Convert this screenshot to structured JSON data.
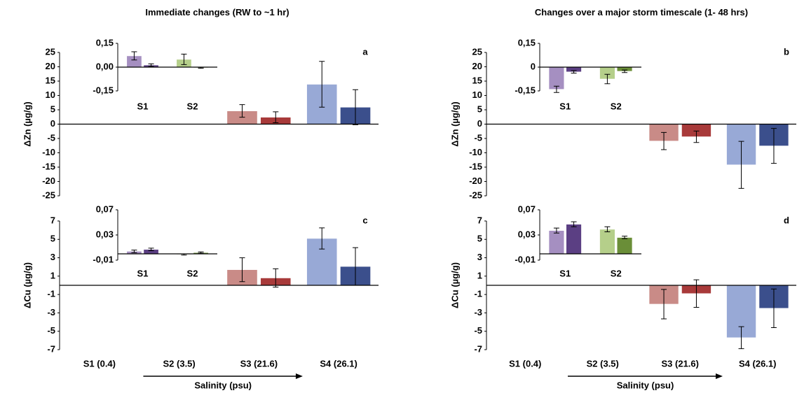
{
  "chart_data": [
    {
      "type": "bar",
      "title": "Immediate changes (RW to ~1 hr)",
      "label": "a",
      "ylabel": "ΔZn (µg/g)",
      "ylim": [
        -25,
        25
      ],
      "yticks": [
        25,
        20,
        15,
        10,
        5,
        0,
        -5,
        -10,
        -15,
        -20,
        -25
      ],
      "series": [
        {
          "colors": [
            "#a58fc1",
            "#b5cf8a",
            "#c98b87",
            "#98a9d6"
          ],
          "values": [
            0,
            0,
            4.6,
            13.9
          ],
          "errors": [
            0,
            0,
            2.2,
            8
          ]
        },
        {
          "colors": [
            "#5b3f83",
            "#6a8e38",
            "#a83a3a",
            "#3b4f8c"
          ],
          "values": [
            0,
            0,
            2.4,
            5.9
          ],
          "errors": [
            0,
            0,
            1.9,
            6.1
          ]
        }
      ],
      "inset": {
        "type": "bar",
        "categories": [
          "S1",
          "S2"
        ],
        "ylim": [
          -0.15,
          0.15
        ],
        "yticks": [
          {
            "value": 0.15,
            "label": "0,15"
          },
          {
            "value": 0,
            "label": "0,00"
          },
          {
            "value": -0.15,
            "label": "-0,15"
          }
        ],
        "series": [
          {
            "colors": [
              "#a58fc1",
              "#b5cf8a"
            ],
            "values": [
              0.071,
              0.049
            ],
            "errors": [
              0.026,
              0.033
            ]
          },
          {
            "colors": [
              "#5b3f83",
              "#6a8e38"
            ],
            "values": [
              0.013,
              -0.004
            ],
            "errors": [
              0.008,
              0.003
            ]
          }
        ]
      }
    },
    {
      "type": "bar",
      "title": "Changes over a major storm timescale (1- 48 hrs)",
      "label": "b",
      "ylabel": "ΔZn (µg/g)",
      "ylim": [
        -25,
        25
      ],
      "yticks": [
        25,
        20,
        15,
        10,
        5,
        0,
        -5,
        -10,
        -15,
        -20,
        -25
      ],
      "series": [
        {
          "colors": [
            "#a58fc1",
            "#b5cf8a",
            "#c98b87",
            "#98a9d6"
          ],
          "values": [
            0,
            0,
            -5.9,
            -14.2
          ],
          "errors": [
            0,
            0,
            3,
            8.2
          ]
        },
        {
          "colors": [
            "#5b3f83",
            "#6a8e38",
            "#a83a3a",
            "#3b4f8c"
          ],
          "values": [
            0,
            0,
            -4.4,
            -7.6
          ],
          "errors": [
            0,
            0,
            2,
            6.1
          ]
        }
      ],
      "inset": {
        "type": "bar",
        "categories": [
          "S1",
          "S2"
        ],
        "ylim": [
          -0.15,
          0.15
        ],
        "yticks": [
          {
            "value": 0.15,
            "label": "0,15"
          },
          {
            "value": 0,
            "label": "0"
          },
          {
            "value": -0.15,
            "label": "-0,15"
          }
        ],
        "series": [
          {
            "colors": [
              "#a58fc1",
              "#b5cf8a"
            ],
            "values": [
              -0.14,
              -0.075
            ],
            "errors": [
              0.02,
              0.03
            ]
          },
          {
            "colors": [
              "#5b3f83",
              "#6a8e38"
            ],
            "values": [
              -0.03,
              -0.026
            ],
            "errors": [
              0.008,
              0.008
            ]
          }
        ]
      }
    },
    {
      "type": "bar",
      "label": "c",
      "ylabel": "ΔCu (µg/g)",
      "xlabel": "Salinity (psu)",
      "categories": [
        "S1 (0.4)",
        "S2 (3.5)",
        "S3 (21.6)",
        "S4 (26.1)"
      ],
      "ylim": [
        -7,
        7
      ],
      "yticks": [
        7,
        5,
        3,
        1,
        -1,
        -3,
        -5,
        -7
      ],
      "series": [
        {
          "colors": [
            "#a58fc1",
            "#b5cf8a",
            "#c98b87",
            "#98a9d6"
          ],
          "values": [
            0,
            0,
            1.7,
            5.1
          ],
          "errors": [
            0,
            0,
            1.3,
            1.15
          ]
        },
        {
          "colors": [
            "#5b3f83",
            "#6a8e38",
            "#a83a3a",
            "#3b4f8c"
          ],
          "values": [
            0,
            0,
            0.8,
            2.05
          ],
          "errors": [
            0,
            0,
            1,
            2.05
          ]
        }
      ],
      "inset": {
        "type": "bar",
        "categories": [
          "S1",
          "S2"
        ],
        "ylim": [
          -0.01,
          0.07
        ],
        "yticks": [
          {
            "value": 0.07,
            "label": "0,07"
          },
          {
            "value": 0.03,
            "label": "0,03"
          },
          {
            "value": -0.01,
            "label": "-0,01"
          }
        ],
        "series": [
          {
            "colors": [
              "#a58fc1",
              "#b5cf8a"
            ],
            "values": [
              0.004,
              -0.001
            ],
            "errors": [
              0.002,
              0.001
            ]
          },
          {
            "colors": [
              "#5b3f83",
              "#6a8e38"
            ],
            "values": [
              0.007,
              0.002
            ],
            "errors": [
              0.002,
              0.001
            ]
          }
        ]
      }
    },
    {
      "type": "bar",
      "label": "d",
      "ylabel": "ΔCu (µg/g)",
      "xlabel": "Salinity (psu)",
      "categories": [
        "S1 (0.4)",
        "S2 (3.5)",
        "S3 (21.6)",
        "S4 (26.1)"
      ],
      "ylim": [
        -7,
        7
      ],
      "yticks": [
        7,
        5,
        3,
        1,
        -1,
        -3,
        -5,
        -7
      ],
      "series": [
        {
          "colors": [
            "#a58fc1",
            "#b5cf8a",
            "#c98b87",
            "#98a9d6"
          ],
          "values": [
            0,
            0,
            -2.05,
            -5.7
          ],
          "errors": [
            0,
            0,
            1.6,
            1.2
          ]
        },
        {
          "colors": [
            "#5b3f83",
            "#6a8e38",
            "#a83a3a",
            "#3b4f8c"
          ],
          "values": [
            0,
            0,
            -0.9,
            -2.5
          ],
          "errors": [
            0,
            0,
            1.5,
            2.1
          ]
        }
      ],
      "inset": {
        "type": "bar",
        "categories": [
          "S1",
          "S2"
        ],
        "ylim": [
          -0.01,
          0.07
        ],
        "yticks": [
          {
            "value": 0.07,
            "label": "0,07"
          },
          {
            "value": 0.03,
            "label": "0,03"
          },
          {
            "value": -0.01,
            "label": "-0,01"
          }
        ],
        "series": [
          {
            "colors": [
              "#a58fc1",
              "#b5cf8a"
            ],
            "values": [
              0.037,
              0.039
            ],
            "errors": [
              0.004,
              0.004
            ]
          },
          {
            "colors": [
              "#5b3f83",
              "#6a8e38"
            ],
            "values": [
              0.047,
              0.026
            ],
            "errors": [
              0.004,
              0.002
            ]
          }
        ]
      }
    }
  ]
}
